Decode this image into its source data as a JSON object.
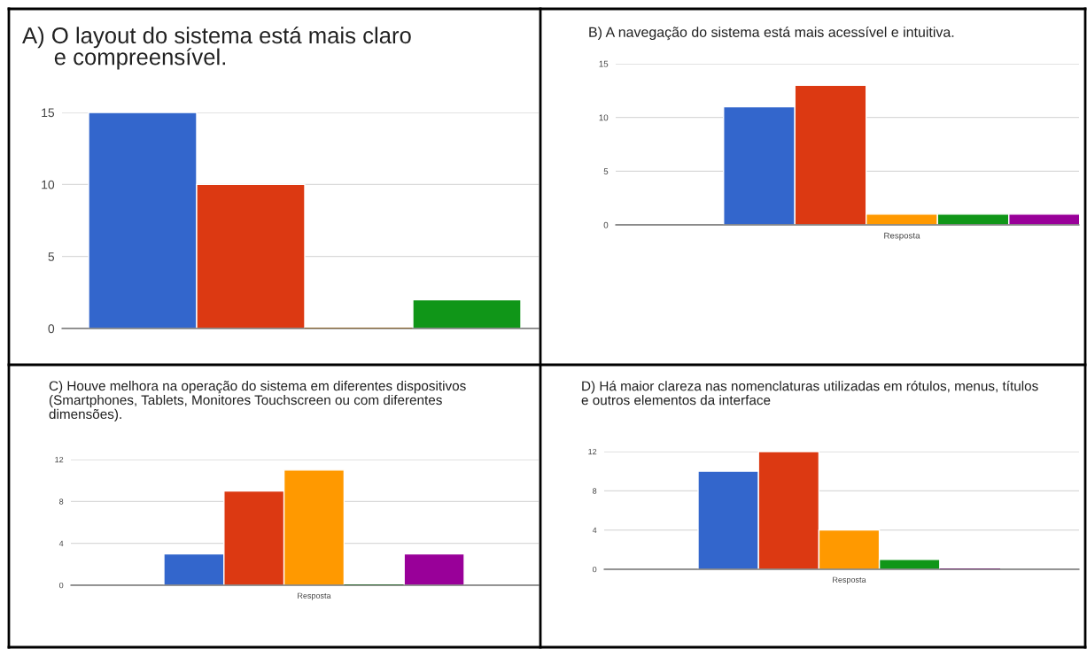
{
  "chart_data": [
    {
      "type": "bar",
      "title": "A) O layout do sistema está mais claro\n     e compreensível.",
      "categories": [
        null
      ],
      "ylim": [
        0,
        15
      ],
      "yticks": [
        0,
        5,
        10,
        15
      ],
      "grid": "y",
      "series": [
        {
          "color": "#3366cc",
          "values": [
            15
          ]
        },
        {
          "color": "#dc3912",
          "values": [
            10
          ]
        },
        {
          "color": "#ff9900",
          "values": [
            0
          ]
        },
        {
          "color": "#109618",
          "values": [
            2
          ]
        },
        {
          "color": "#990099",
          "values": [
            null
          ]
        }
      ]
    },
    {
      "type": "bar",
      "title": "B) A navegação do sistema está mais acessível e intuitiva.",
      "categories": [
        "Resposta"
      ],
      "ylim": [
        0,
        15
      ],
      "yticks": [
        0,
        5,
        10,
        15
      ],
      "grid": "y",
      "series": [
        {
          "color": "#3366cc",
          "values": [
            11
          ]
        },
        {
          "color": "#dc3912",
          "values": [
            13
          ]
        },
        {
          "color": "#ff9900",
          "values": [
            1
          ]
        },
        {
          "color": "#109618",
          "values": [
            1
          ]
        },
        {
          "color": "#990099",
          "values": [
            1
          ]
        }
      ]
    },
    {
      "type": "bar",
      "title": "C) Houve melhora na operação do sistema em diferentes dispositivos\n(Smartphones, Tablets, Monitores Touchscreen ou com diferentes\ndimensões).",
      "categories": [
        "Resposta"
      ],
      "ylim": [
        0,
        12
      ],
      "yticks": [
        0,
        4,
        8,
        12
      ],
      "grid": "y",
      "series": [
        {
          "color": "#3366cc",
          "values": [
            3
          ]
        },
        {
          "color": "#dc3912",
          "values": [
            9
          ]
        },
        {
          "color": "#ff9900",
          "values": [
            11
          ]
        },
        {
          "color": "#109618",
          "values": [
            0
          ]
        },
        {
          "color": "#990099",
          "values": [
            3
          ]
        }
      ]
    },
    {
      "type": "bar",
      "title": "D) Há maior clareza nas nomenclaturas utilizadas em rótulos, menus, títulos\ne outros elementos da interface",
      "categories": [
        "Resposta"
      ],
      "ylim": [
        0,
        12
      ],
      "yticks": [
        0,
        4,
        8,
        12
      ],
      "grid": "y",
      "series": [
        {
          "color": "#3366cc",
          "values": [
            10
          ]
        },
        {
          "color": "#dc3912",
          "values": [
            12
          ]
        },
        {
          "color": "#ff9900",
          "values": [
            4
          ]
        },
        {
          "color": "#109618",
          "values": [
            1
          ]
        },
        {
          "color": "#990099",
          "values": [
            0
          ]
        }
      ]
    }
  ]
}
